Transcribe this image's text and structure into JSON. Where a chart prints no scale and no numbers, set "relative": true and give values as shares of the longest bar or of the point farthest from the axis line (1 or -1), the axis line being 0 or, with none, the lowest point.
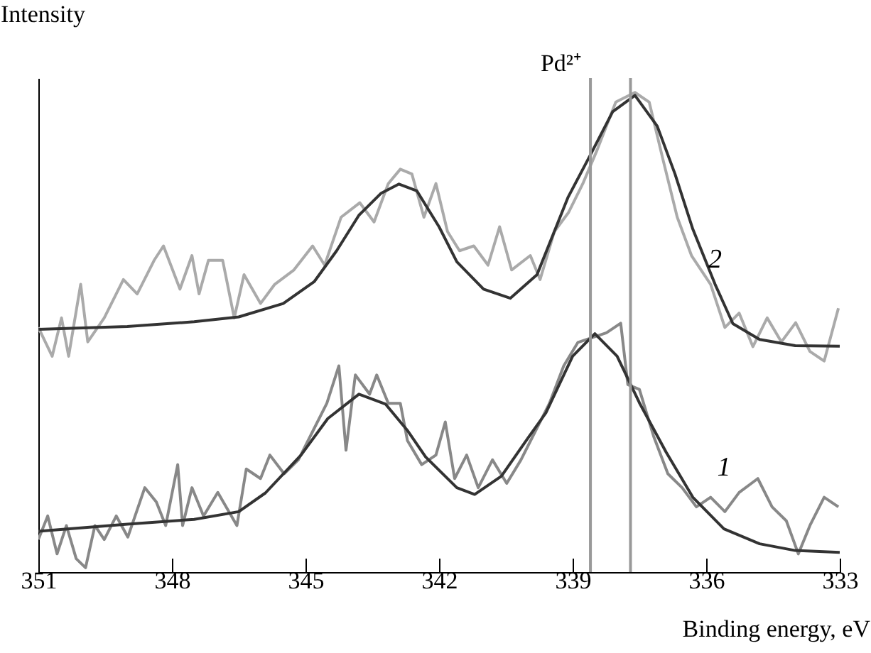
{
  "chart_data": {
    "type": "line",
    "relative": true,
    "xlabel": "Binding energy, eV",
    "ylabel": "Intensity",
    "xlim": [
      351,
      333
    ],
    "xticks": [
      351,
      348,
      345,
      342,
      339,
      336,
      333
    ],
    "grid": false,
    "series": [
      {
        "color": "#aaaaaa",
        "x": [
          351.0,
          350.69,
          350.48,
          350.32,
          350.05,
          349.89,
          349.52,
          349.09,
          348.78,
          348.4,
          348.19,
          347.82,
          347.55,
          347.39,
          347.18,
          346.86,
          346.6,
          346.38,
          346.01,
          345.69,
          345.26,
          344.84,
          344.57,
          344.2,
          343.78,
          343.46,
          343.14,
          342.87,
          342.61,
          342.34,
          342.07,
          341.81,
          341.54,
          341.22,
          340.9,
          340.64,
          340.37,
          339.95,
          339.73,
          339.41,
          339.09,
          338.77,
          338.45,
          338.03,
          337.6,
          337.28,
          336.97,
          336.65,
          336.33,
          335.9,
          335.58,
          335.26,
          334.95,
          334.63,
          334.31,
          333.99,
          333.67,
          333.35,
          333.03
        ],
        "values": [
          0.51,
          0.45,
          0.53,
          0.45,
          0.6,
          0.48,
          0.53,
          0.61,
          0.58,
          0.65,
          0.68,
          0.59,
          0.66,
          0.58,
          0.65,
          0.65,
          0.53,
          0.62,
          0.56,
          0.6,
          0.63,
          0.68,
          0.64,
          0.74,
          0.77,
          0.73,
          0.81,
          0.84,
          0.83,
          0.74,
          0.81,
          0.71,
          0.67,
          0.68,
          0.64,
          0.72,
          0.63,
          0.66,
          0.61,
          0.71,
          0.75,
          0.81,
          0.88,
          0.98,
          1.0,
          0.98,
          0.86,
          0.74,
          0.66,
          0.6,
          0.51,
          0.54,
          0.47,
          0.53,
          0.48,
          0.52,
          0.46,
          0.44,
          0.55
        ]
      },
      {
        "color": "#888888",
        "x": [
          351.0,
          350.79,
          350.58,
          350.37,
          350.15,
          349.94,
          349.73,
          349.52,
          349.25,
          348.99,
          348.61,
          348.35,
          348.14,
          347.87,
          347.76,
          347.55,
          347.29,
          346.97,
          346.54,
          346.33,
          346.01,
          345.8,
          345.48,
          345.16,
          344.84,
          344.52,
          344.25,
          344.09,
          343.88,
          343.56,
          343.4,
          343.14,
          342.87,
          342.71,
          342.39,
          342.07,
          341.86,
          341.65,
          341.38,
          341.12,
          340.8,
          340.48,
          340.16,
          339.84,
          339.52,
          339.2,
          338.88,
          338.56,
          338.24,
          337.92,
          337.76,
          337.5,
          337.18,
          336.86,
          336.54,
          336.22,
          335.9,
          335.58,
          335.26,
          334.84,
          334.52,
          334.2,
          333.93,
          333.67,
          333.35,
          333.03
        ],
        "values": [
          0.068,
          0.117,
          0.038,
          0.097,
          0.028,
          0.009,
          0.097,
          0.068,
          0.117,
          0.073,
          0.176,
          0.146,
          0.097,
          0.224,
          0.097,
          0.176,
          0.117,
          0.166,
          0.097,
          0.215,
          0.195,
          0.244,
          0.205,
          0.234,
          0.293,
          0.352,
          0.43,
          0.254,
          0.411,
          0.371,
          0.411,
          0.352,
          0.352,
          0.274,
          0.224,
          0.244,
          0.313,
          0.195,
          0.244,
          0.176,
          0.234,
          0.185,
          0.234,
          0.293,
          0.352,
          0.43,
          0.479,
          0.489,
          0.499,
          0.519,
          0.391,
          0.381,
          0.283,
          0.205,
          0.176,
          0.136,
          0.156,
          0.126,
          0.166,
          0.195,
          0.136,
          0.107,
          0.038,
          0.097,
          0.156,
          0.136
        ]
      },
      {
        "name": "2",
        "color": "#333333",
        "x": [
          351,
          349,
          347.5,
          346.5,
          345.5,
          344.8,
          344.3,
          343.8,
          343.3,
          342.9,
          342.5,
          342.0,
          341.6,
          341.0,
          340.4,
          339.8,
          339.1,
          338.6,
          338.1,
          337.6,
          337.1,
          336.7,
          336.3,
          335.8,
          335.4,
          334.8,
          334,
          333
        ],
        "values": [
          0.506,
          0.512,
          0.522,
          0.532,
          0.56,
          0.606,
          0.67,
          0.744,
          0.79,
          0.809,
          0.795,
          0.72,
          0.647,
          0.59,
          0.571,
          0.62,
          0.782,
          0.87,
          0.96,
          0.994,
          0.93,
          0.83,
          0.715,
          0.6,
          0.518,
          0.485,
          0.472,
          0.471
        ]
      },
      {
        "name": "1",
        "color": "#333333",
        "x": [
          351,
          349,
          347.5,
          346.5,
          345.9,
          345.1,
          344.5,
          343.8,
          343.2,
          342.7,
          342.3,
          341.6,
          341.2,
          340.6,
          340.0,
          339.6,
          339.0,
          338.5,
          338.0,
          337.5,
          336.9,
          336.3,
          335.6,
          334.8,
          334,
          333
        ],
        "values": [
          0.085,
          0.1,
          0.11,
          0.126,
          0.165,
          0.244,
          0.32,
          0.371,
          0.35,
          0.294,
          0.24,
          0.176,
          0.162,
          0.2,
          0.28,
          0.332,
          0.45,
          0.497,
          0.45,
          0.353,
          0.25,
          0.156,
          0.09,
          0.059,
          0.045,
          0.041
        ]
      }
    ],
    "ref_lines": [
      {
        "axis": "x",
        "value": 338.6,
        "label": "Pd²⁺",
        "color": "#999999"
      },
      {
        "axis": "x",
        "value": 337.7,
        "color": "#999999"
      }
    ]
  }
}
